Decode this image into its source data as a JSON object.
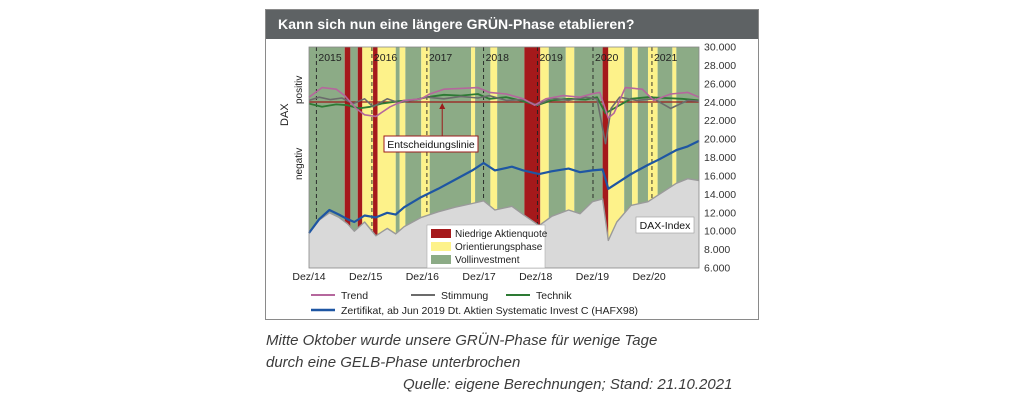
{
  "title": "Kann sich nun eine längere GRÜN-Phase etablieren?",
  "caption": {
    "line1": "Mitte Oktober wurde unsere GRÜN-Phase für wenige Tage",
    "line2": "durch eine GELB-Phase unterbrochen",
    "source": "Quelle: eigene Berechnungen; Stand: 21.10.2021"
  },
  "colors": {
    "title_bg": "#5e6264",
    "green_phase": "#8cab86",
    "yellow_phase": "#fdf28a",
    "red_phase": "#a5191b",
    "trend": "#b5679d",
    "stimmung": "#6b6b6b",
    "technik": "#2d7a34",
    "zertifikat": "#1e56a3",
    "dax": "#9a9a9a",
    "dax_fill": "#d9d9d9",
    "decision_line": "#9c1b1b"
  },
  "chart_data": {
    "type": "line",
    "title": "Kann sich nun eine längere GRÜN-Phase etablieren?",
    "right_axis": {
      "ticks": [
        "30.000",
        "28.000",
        "26.000",
        "24.000",
        "22.000",
        "20.000",
        "18.000",
        "16.000",
        "14.000",
        "12.000",
        "10.000",
        "8.000",
        "6.000"
      ],
      "ylim": [
        6000,
        30000
      ]
    },
    "left_axis": {
      "title": "DAX",
      "upper_label": "positiv",
      "lower_label": "negativ"
    },
    "x_start": 2014.92,
    "x_end": 2021.8,
    "year_labels": [
      {
        "label": "2015",
        "x": 2015.05
      },
      {
        "label": "2016",
        "x": 2016.03
      },
      {
        "label": "2017",
        "x": 2017.0
      },
      {
        "label": "2018",
        "x": 2018.0
      },
      {
        "label": "2019",
        "x": 2018.95
      },
      {
        "label": "2020",
        "x": 2019.93
      },
      {
        "label": "2021",
        "x": 2020.97
      }
    ],
    "x_ticks": [
      {
        "label": "Dez/14",
        "x": 2014.92
      },
      {
        "label": "Dez/15",
        "x": 2015.92
      },
      {
        "label": "Dez/16",
        "x": 2016.92
      },
      {
        "label": "Dez/17",
        "x": 2017.92
      },
      {
        "label": "Dez/18",
        "x": 2018.92
      },
      {
        "label": "Dez/19",
        "x": 2019.92
      },
      {
        "label": "Dez/20",
        "x": 2020.92
      }
    ],
    "dashed_lines_x": [
      2015.05,
      2016.03,
      2017.0,
      2018.0,
      2018.95,
      2019.93,
      2020.97
    ],
    "phases": [
      {
        "state": "green",
        "from": 2014.92,
        "to": 2015.55
      },
      {
        "state": "red",
        "from": 2015.55,
        "to": 2015.65
      },
      {
        "state": "green",
        "from": 2015.65,
        "to": 2015.78
      },
      {
        "state": "red",
        "from": 2015.78,
        "to": 2015.86
      },
      {
        "state": "yellow",
        "from": 2015.86,
        "to": 2016.05
      },
      {
        "state": "red",
        "from": 2016.05,
        "to": 2016.13
      },
      {
        "state": "yellow",
        "from": 2016.13,
        "to": 2016.45
      },
      {
        "state": "green",
        "from": 2016.45,
        "to": 2016.52
      },
      {
        "state": "yellow",
        "from": 2016.52,
        "to": 2016.62
      },
      {
        "state": "green",
        "from": 2016.62,
        "to": 2016.9
      },
      {
        "state": "yellow",
        "from": 2016.9,
        "to": 2017.05
      },
      {
        "state": "green",
        "from": 2017.05,
        "to": 2017.78
      },
      {
        "state": "yellow",
        "from": 2017.78,
        "to": 2017.85
      },
      {
        "state": "green",
        "from": 2017.85,
        "to": 2018.12
      },
      {
        "state": "yellow",
        "from": 2018.12,
        "to": 2018.24
      },
      {
        "state": "green",
        "from": 2018.24,
        "to": 2018.72
      },
      {
        "state": "red",
        "from": 2018.72,
        "to": 2019.0
      },
      {
        "state": "yellow",
        "from": 2019.0,
        "to": 2019.15
      },
      {
        "state": "green",
        "from": 2019.15,
        "to": 2019.45
      },
      {
        "state": "yellow",
        "from": 2019.45,
        "to": 2019.6
      },
      {
        "state": "green",
        "from": 2019.6,
        "to": 2020.1
      },
      {
        "state": "red",
        "from": 2020.1,
        "to": 2020.2
      },
      {
        "state": "yellow",
        "from": 2020.2,
        "to": 2020.48
      },
      {
        "state": "green",
        "from": 2020.48,
        "to": 2020.62
      },
      {
        "state": "yellow",
        "from": 2020.62,
        "to": 2020.72
      },
      {
        "state": "green",
        "from": 2020.72,
        "to": 2020.9
      },
      {
        "state": "yellow",
        "from": 2020.9,
        "to": 2021.07
      },
      {
        "state": "green",
        "from": 2021.07,
        "to": 2021.33
      },
      {
        "state": "yellow",
        "from": 2021.33,
        "to": 2021.4
      },
      {
        "state": "green",
        "from": 2021.4,
        "to": 2021.8
      }
    ],
    "series": [
      {
        "name": "DAX-Index",
        "color": "#9a9a9a",
        "axis": "right",
        "x": [
          2014.92,
          2015.1,
          2015.28,
          2015.45,
          2015.6,
          2015.72,
          2015.9,
          2016.1,
          2016.3,
          2016.45,
          2016.6,
          2016.9,
          2017.2,
          2017.5,
          2017.8,
          2018.0,
          2018.2,
          2018.5,
          2018.7,
          2018.98,
          2019.2,
          2019.5,
          2019.7,
          2019.92,
          2020.1,
          2020.2,
          2020.35,
          2020.6,
          2020.9,
          2021.1,
          2021.4,
          2021.6,
          2021.8
        ],
        "values": [
          9800,
          11200,
          12000,
          11500,
          10800,
          10000,
          11000,
          9500,
          10300,
          9700,
          10500,
          11500,
          12100,
          12600,
          13000,
          13300,
          12300,
          12700,
          11800,
          10600,
          11600,
          12300,
          11900,
          13200,
          13500,
          9000,
          11000,
          12800,
          13200,
          14000,
          15200,
          15700,
          15500
        ]
      },
      {
        "name": "Zertifikat, ab Jun 2019 Dt. Aktien Systematic Invest C (HAFX98)",
        "color": "#1e56a3",
        "axis": "right",
        "x": [
          2014.92,
          2015.1,
          2015.28,
          2015.45,
          2015.6,
          2015.72,
          2015.9,
          2016.1,
          2016.3,
          2016.45,
          2016.6,
          2016.9,
          2017.2,
          2017.5,
          2017.8,
          2018.0,
          2018.2,
          2018.5,
          2018.7,
          2018.98,
          2019.2,
          2019.5,
          2019.7,
          2019.92,
          2020.1,
          2020.2,
          2020.35,
          2020.6,
          2020.9,
          2021.1,
          2021.4,
          2021.6,
          2021.8
        ],
        "values": [
          9800,
          11300,
          12300,
          11800,
          11300,
          11000,
          11700,
          11500,
          12000,
          11800,
          12600,
          13700,
          14600,
          15600,
          16600,
          17400,
          16600,
          17000,
          16600,
          16200,
          16500,
          16800,
          16400,
          16600,
          16700,
          14600,
          15200,
          16200,
          17200,
          17800,
          18800,
          19200,
          19800
        ]
      },
      {
        "name": "Trend",
        "color": "#b5679d",
        "axis": "indicator",
        "x": [
          2014.92,
          2015.15,
          2015.4,
          2015.55,
          2015.75,
          2015.9,
          2016.1,
          2016.35,
          2016.6,
          2016.9,
          2017.05,
          2017.3,
          2017.6,
          2017.9,
          2018.1,
          2018.4,
          2018.7,
          2018.9,
          2019.1,
          2019.4,
          2019.7,
          2019.9,
          2020.05,
          2020.2,
          2020.3,
          2020.5,
          2020.8,
          2021.0,
          2021.3,
          2021.6,
          2021.8
        ],
        "values": [
          0.3,
          0.9,
          0.8,
          0.4,
          -0.4,
          -0.8,
          -0.9,
          -0.3,
          0.1,
          0.2,
          0.5,
          0.8,
          0.85,
          0.9,
          0.6,
          0.5,
          0.2,
          -0.2,
          0.2,
          0.4,
          0.3,
          0.5,
          0.6,
          -1.0,
          -0.7,
          0.9,
          0.8,
          0.1,
          0.5,
          0.6,
          0.3
        ]
      },
      {
        "name": "Stimmung",
        "color": "#6b6b6b",
        "axis": "indicator",
        "x": [
          2014.92,
          2015.1,
          2015.3,
          2015.5,
          2015.7,
          2015.9,
          2016.05,
          2016.3,
          2016.5,
          2016.8,
          2017.0,
          2017.3,
          2017.6,
          2017.9,
          2018.1,
          2018.4,
          2018.7,
          2018.95,
          2019.2,
          2019.5,
          2019.8,
          2020.0,
          2020.15,
          2020.25,
          2020.4,
          2020.7,
          2021.0,
          2021.3,
          2021.6,
          2021.8
        ],
        "values": [
          0.1,
          0.3,
          0.15,
          0.25,
          -0.1,
          0.2,
          -0.3,
          0.2,
          -0.05,
          0.15,
          0.3,
          0.2,
          0.35,
          0.25,
          0.4,
          0.1,
          0.15,
          -0.2,
          0.25,
          0.1,
          0.3,
          0.2,
          -2.6,
          -0.4,
          0.3,
          0.1,
          0.2,
          -0.4,
          0.1,
          0.05
        ]
      },
      {
        "name": "Technik",
        "color": "#2d7a34",
        "axis": "indicator",
        "x": [
          2014.92,
          2015.15,
          2015.4,
          2015.6,
          2015.8,
          2016.0,
          2016.2,
          2016.5,
          2016.8,
          2017.0,
          2017.3,
          2017.6,
          2017.9,
          2018.1,
          2018.4,
          2018.7,
          2018.95,
          2019.2,
          2019.5,
          2019.8,
          2020.0,
          2020.15,
          2020.3,
          2020.6,
          2020.9,
          2021.2,
          2021.5,
          2021.8
        ],
        "values": [
          -0.1,
          -0.3,
          -0.15,
          -0.2,
          -0.4,
          -0.3,
          -0.1,
          0.05,
          0.15,
          0.3,
          0.45,
          0.4,
          0.5,
          0.2,
          0.3,
          0.05,
          -0.2,
          0.1,
          0.2,
          0.15,
          0.3,
          -0.7,
          -0.4,
          0.2,
          0.3,
          0.25,
          0.2,
          0.1
        ]
      }
    ],
    "annotations": {
      "decision_line": "Entscheidungslinie",
      "dax_index": "DAX-Index"
    },
    "phase_legend": [
      {
        "state": "red",
        "label": "Niedrige Aktienquote"
      },
      {
        "state": "yellow",
        "label": "Orientierungsphase"
      },
      {
        "state": "green",
        "label": "Vollinvestment"
      }
    ],
    "line_legend_row1": [
      {
        "label": "Trend",
        "color": "#b5679d"
      },
      {
        "label": "Stimmung",
        "color": "#6b6b6b"
      },
      {
        "label": "Technik",
        "color": "#2d7a34"
      }
    ],
    "line_legend_row2": {
      "label": "Zertifikat, ab Jun 2019 Dt. Aktien Systematic Invest C (HAFX98)",
      "color": "#1e56a3"
    }
  }
}
